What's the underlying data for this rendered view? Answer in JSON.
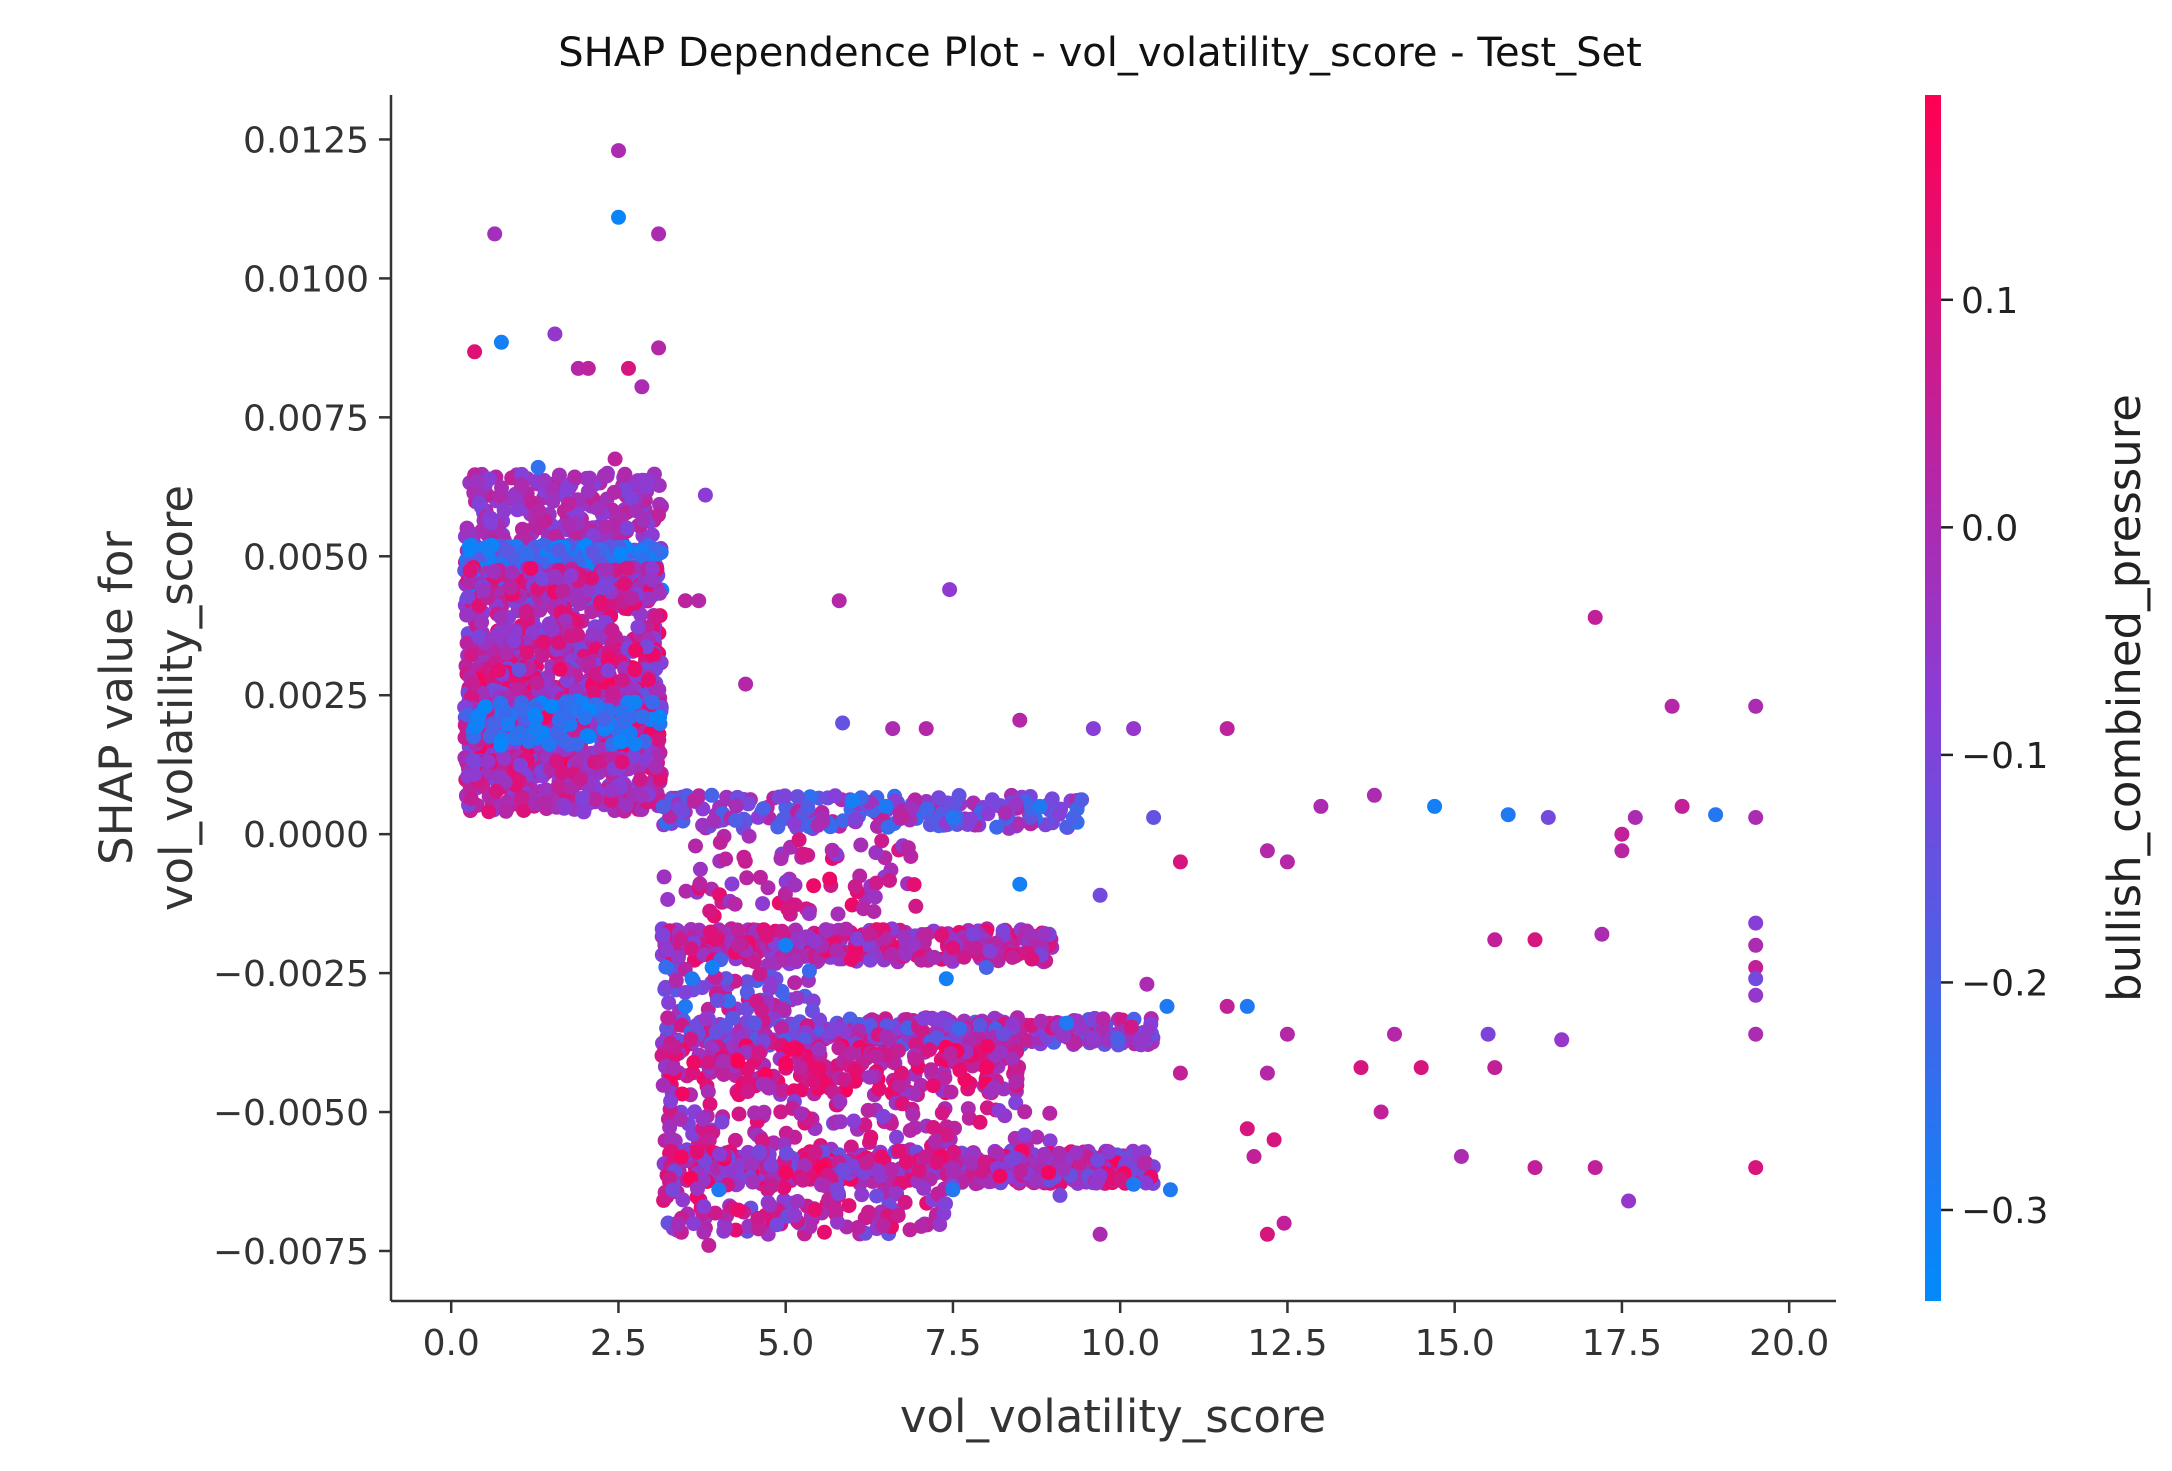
{
  "chart_data": {
    "type": "scatter",
    "title": "SHAP Dependence Plot - vol_volatility_score - Test_Set",
    "xlabel": "vol_volatility_score",
    "ylabel_lines": [
      "SHAP value for",
      "vol_volatility_score"
    ],
    "xlim": [
      -0.9,
      20.7
    ],
    "ylim": [
      -0.0084,
      0.0133
    ],
    "xticks": [
      0.0,
      2.5,
      5.0,
      7.5,
      10.0,
      12.5,
      15.0,
      17.5,
      20.0
    ],
    "xtick_labels": [
      "0.0",
      "2.5",
      "5.0",
      "7.5",
      "10.0",
      "12.5",
      "15.0",
      "17.5",
      "20.0"
    ],
    "yticks": [
      -0.0075,
      -0.005,
      -0.0025,
      0.0,
      0.0025,
      0.005,
      0.0075,
      0.01,
      0.0125
    ],
    "ytick_labels": [
      "−0.0075",
      "−0.0050",
      "−0.0025",
      "0.0000",
      "0.0025",
      "0.0050",
      "0.0075",
      "0.0100",
      "0.0125"
    ],
    "grid": false,
    "colorbar": {
      "label": "bullish_combined_pressure",
      "range": [
        -0.34,
        0.19
      ],
      "ticks": [
        0.1,
        0.0,
        -0.1,
        -0.2,
        -0.3
      ],
      "tick_labels": [
        "0.1",
        "0.0",
        "−0.1",
        "−0.2",
        "−0.3"
      ],
      "colors": [
        "#008bfb",
        "#ff0052"
      ]
    },
    "points": [
      {
        "x": 2.5,
        "y": 0.0123,
        "c": 0.0
      },
      {
        "x": 2.5,
        "y": 0.0111,
        "c": -0.32
      },
      {
        "x": 0.65,
        "y": 0.0108,
        "c": -0.02
      },
      {
        "x": 3.1,
        "y": 0.0108,
        "c": 0.0
      },
      {
        "x": 1.55,
        "y": 0.009,
        "c": -0.05
      },
      {
        "x": 0.75,
        "y": 0.00885,
        "c": -0.3
      },
      {
        "x": 3.1,
        "y": 0.00875,
        "c": 0.02
      },
      {
        "x": 0.35,
        "y": 0.00868,
        "c": 0.12
      },
      {
        "x": 1.9,
        "y": 0.00838,
        "c": 0.02
      },
      {
        "x": 2.05,
        "y": 0.00838,
        "c": 0.04
      },
      {
        "x": 2.65,
        "y": 0.00838,
        "c": 0.1
      },
      {
        "x": 2.85,
        "y": 0.00805,
        "c": 0.0
      },
      {
        "x": 2.45,
        "y": 0.00675,
        "c": 0.04
      },
      {
        "x": 1.3,
        "y": 0.0066,
        "c": -0.25
      },
      {
        "x": 3.8,
        "y": 0.0061,
        "c": -0.07
      },
      {
        "x": 5.8,
        "y": 0.0042,
        "c": 0.02
      },
      {
        "x": 7.45,
        "y": 0.0044,
        "c": -0.06
      },
      {
        "x": 3.5,
        "y": 0.0042,
        "c": 0.04
      },
      {
        "x": 3.7,
        "y": 0.0042,
        "c": 0.02
      },
      {
        "x": 17.1,
        "y": 0.0039,
        "c": 0.05
      },
      {
        "x": 4.4,
        "y": 0.0027,
        "c": 0.02
      },
      {
        "x": 18.25,
        "y": 0.0023,
        "c": 0.02
      },
      {
        "x": 19.5,
        "y": 0.0023,
        "c": 0.0
      },
      {
        "x": 8.5,
        "y": 0.00205,
        "c": 0.02
      },
      {
        "x": 9.6,
        "y": 0.0019,
        "c": -0.08
      },
      {
        "x": 10.2,
        "y": 0.0019,
        "c": -0.05
      },
      {
        "x": 11.6,
        "y": 0.0019,
        "c": 0.04
      },
      {
        "x": 5.85,
        "y": 0.002,
        "c": -0.15
      },
      {
        "x": 6.6,
        "y": 0.0019,
        "c": 0.0
      },
      {
        "x": 7.1,
        "y": 0.0019,
        "c": 0.02
      },
      {
        "x": 13.8,
        "y": 0.0007,
        "c": 0.0
      },
      {
        "x": 14.7,
        "y": 0.0005,
        "c": -0.3
      },
      {
        "x": 15.8,
        "y": 0.00035,
        "c": -0.28
      },
      {
        "x": 16.4,
        "y": 0.0003,
        "c": -0.12
      },
      {
        "x": 18.9,
        "y": 0.00035,
        "c": -0.27
      },
      {
        "x": 17.7,
        "y": 0.0003,
        "c": 0.0
      },
      {
        "x": 18.4,
        "y": 0.0005,
        "c": 0.05
      },
      {
        "x": 19.5,
        "y": 0.0003,
        "c": 0.0
      },
      {
        "x": 13.0,
        "y": 0.0005,
        "c": 0.0
      },
      {
        "x": 12.2,
        "y": -0.0003,
        "c": 0.02
      },
      {
        "x": 12.5,
        "y": -0.0005,
        "c": 0.02
      },
      {
        "x": 10.9,
        "y": -0.0005,
        "c": 0.1
      },
      {
        "x": 17.5,
        "y": 0.0,
        "c": 0.05
      },
      {
        "x": 17.5,
        "y": -0.0003,
        "c": 0.03
      },
      {
        "x": 8.5,
        "y": -0.0009,
        "c": -0.3
      },
      {
        "x": 9.7,
        "y": -0.0011,
        "c": -0.12
      },
      {
        "x": 5.2,
        "y": -0.0001,
        "c": 0.1
      },
      {
        "x": 16.2,
        "y": -0.0019,
        "c": 0.1
      },
      {
        "x": 15.6,
        "y": -0.0019,
        "c": 0.05
      },
      {
        "x": 17.2,
        "y": -0.0018,
        "c": 0.0
      },
      {
        "x": 19.5,
        "y": -0.0016,
        "c": -0.08
      },
      {
        "x": 19.5,
        "y": -0.002,
        "c": 0.0
      },
      {
        "x": 19.5,
        "y": -0.0024,
        "c": 0.05
      },
      {
        "x": 19.5,
        "y": -0.0026,
        "c": -0.12
      },
      {
        "x": 19.5,
        "y": -0.0029,
        "c": -0.05
      },
      {
        "x": 19.5,
        "y": -0.0036,
        "c": 0.0
      },
      {
        "x": 10.7,
        "y": -0.0031,
        "c": -0.28
      },
      {
        "x": 11.9,
        "y": -0.0031,
        "c": -0.28
      },
      {
        "x": 11.6,
        "y": -0.0031,
        "c": 0.05
      },
      {
        "x": 10.4,
        "y": -0.0027,
        "c": 0.0
      },
      {
        "x": 12.5,
        "y": -0.0036,
        "c": 0.02
      },
      {
        "x": 14.1,
        "y": -0.0036,
        "c": 0.02
      },
      {
        "x": 15.5,
        "y": -0.0036,
        "c": -0.1
      },
      {
        "x": 16.6,
        "y": -0.0037,
        "c": -0.05
      },
      {
        "x": 13.6,
        "y": -0.0042,
        "c": 0.1
      },
      {
        "x": 14.5,
        "y": -0.0042,
        "c": 0.1
      },
      {
        "x": 15.6,
        "y": -0.0042,
        "c": 0.05
      },
      {
        "x": 10.9,
        "y": -0.0043,
        "c": 0.05
      },
      {
        "x": 12.2,
        "y": -0.0043,
        "c": 0.02
      },
      {
        "x": 13.9,
        "y": -0.005,
        "c": 0.05
      },
      {
        "x": 11.9,
        "y": -0.0053,
        "c": 0.1
      },
      {
        "x": 12.3,
        "y": -0.0055,
        "c": 0.1
      },
      {
        "x": 12.0,
        "y": -0.0058,
        "c": 0.05
      },
      {
        "x": 15.1,
        "y": -0.0058,
        "c": 0.0
      },
      {
        "x": 16.2,
        "y": -0.006,
        "c": 0.05
      },
      {
        "x": 17.1,
        "y": -0.006,
        "c": 0.05
      },
      {
        "x": 19.5,
        "y": -0.006,
        "c": 0.1
      },
      {
        "x": 17.6,
        "y": -0.0066,
        "c": -0.05
      },
      {
        "x": 10.2,
        "y": -0.0063,
        "c": -0.28
      },
      {
        "x": 10.75,
        "y": -0.0064,
        "c": -0.28
      },
      {
        "x": 12.2,
        "y": -0.0072,
        "c": 0.1
      },
      {
        "x": 12.45,
        "y": -0.007,
        "c": 0.05
      },
      {
        "x": 9.7,
        "y": -0.0072,
        "c": 0.0
      },
      {
        "x": 7.5,
        "y": -0.0064,
        "c": -0.27
      },
      {
        "x": 9.1,
        "y": -0.0065,
        "c": -0.12
      },
      {
        "x": 3.85,
        "y": -0.0074,
        "c": 0.05
      },
      {
        "x": 4.0,
        "y": -0.0064,
        "c": -0.28
      },
      {
        "x": 3.5,
        "y": -0.0031,
        "c": -0.28
      },
      {
        "x": 3.9,
        "y": -0.0024,
        "c": -0.3
      },
      {
        "x": 3.6,
        "y": -0.0026,
        "c": -0.28
      },
      {
        "x": 5.0,
        "y": -0.002,
        "c": -0.3
      },
      {
        "x": 7.4,
        "y": -0.0026,
        "c": -0.3
      },
      {
        "x": 8.0,
        "y": -0.0024,
        "c": -0.2
      },
      {
        "x": 7.6,
        "y": -0.0035,
        "c": -0.22
      },
      {
        "x": 9.2,
        "y": -0.0034,
        "c": -0.28
      },
      {
        "x": 6.0,
        "y": 0.0006,
        "c": -0.3
      },
      {
        "x": 6.5,
        "y": 0.0005,
        "c": -0.28
      },
      {
        "x": 7.5,
        "y": 0.0003,
        "c": -0.27
      },
      {
        "x": 8.8,
        "y": 0.0005,
        "c": -0.28
      },
      {
        "x": 9.3,
        "y": 0.0003,
        "c": -0.2
      },
      {
        "x": 10.5,
        "y": 0.0003,
        "c": -0.15
      }
    ],
    "clusters": [
      {
        "xr": [
          0.2,
          3.15
        ],
        "yr": [
          0.0048,
          0.0065
        ],
        "n": 260,
        "cr": [
          -0.1,
          0.05
        ]
      },
      {
        "xr": [
          0.2,
          3.15
        ],
        "yr": [
          0.0042,
          0.0052
        ],
        "n": 320,
        "cr": [
          -0.33,
          -0.15
        ]
      },
      {
        "xr": [
          0.2,
          3.15
        ],
        "yr": [
          0.003,
          0.0048
        ],
        "n": 420,
        "cr": [
          -0.12,
          0.15
        ]
      },
      {
        "xr": [
          0.2,
          3.15
        ],
        "yr": [
          0.0012,
          0.003
        ],
        "n": 520,
        "cr": [
          -0.15,
          0.18
        ]
      },
      {
        "xr": [
          0.2,
          3.15
        ],
        "yr": [
          0.0004,
          0.0014
        ],
        "n": 260,
        "cr": [
          -0.1,
          0.12
        ]
      },
      {
        "xr": [
          0.2,
          3.15
        ],
        "yr": [
          0.0016,
          0.0024
        ],
        "n": 90,
        "cr": [
          -0.33,
          -0.2
        ]
      },
      {
        "xr": [
          3.15,
          9.5
        ],
        "yr": [
          0.0001,
          0.0007
        ],
        "n": 220,
        "cr": [
          -0.25,
          0.05
        ]
      },
      {
        "xr": [
          3.15,
          7.0
        ],
        "yr": [
          -0.0015,
          0.0
        ],
        "n": 80,
        "cr": [
          -0.08,
          0.15
        ]
      },
      {
        "xr": [
          3.15,
          9.0
        ],
        "yr": [
          -0.0023,
          -0.0017
        ],
        "n": 340,
        "cr": [
          -0.1,
          0.15
        ]
      },
      {
        "xr": [
          3.15,
          5.5
        ],
        "yr": [
          -0.0032,
          -0.0022
        ],
        "n": 70,
        "cr": [
          -0.25,
          0.1
        ]
      },
      {
        "xr": [
          3.15,
          10.5
        ],
        "yr": [
          -0.0038,
          -0.0033
        ],
        "n": 380,
        "cr": [
          -0.2,
          0.1
        ]
      },
      {
        "xr": [
          3.15,
          8.5
        ],
        "yr": [
          -0.0047,
          -0.0038
        ],
        "n": 250,
        "cr": [
          -0.05,
          0.18
        ]
      },
      {
        "xr": [
          3.15,
          9.0
        ],
        "yr": [
          -0.0057,
          -0.0048
        ],
        "n": 110,
        "cr": [
          -0.1,
          0.12
        ]
      },
      {
        "xr": [
          3.15,
          10.5
        ],
        "yr": [
          -0.0063,
          -0.0057
        ],
        "n": 520,
        "cr": [
          -0.15,
          0.18
        ]
      },
      {
        "xr": [
          3.15,
          7.5
        ],
        "yr": [
          -0.0072,
          -0.0063
        ],
        "n": 130,
        "cr": [
          -0.15,
          0.15
        ]
      }
    ]
  }
}
